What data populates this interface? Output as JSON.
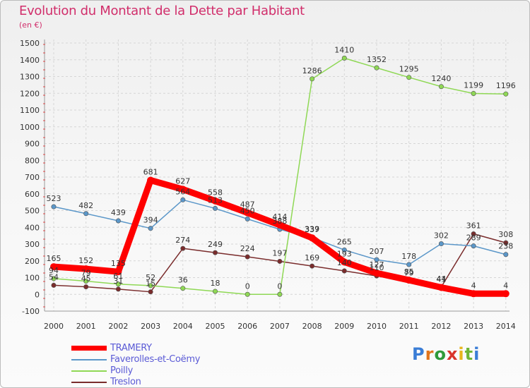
{
  "header": {
    "title": "Evolution du Montant de la Dette par Habitant",
    "subtitle": "(en €)"
  },
  "brand": {
    "name": "Proxiti",
    "letter_colors": [
      "#3a7dd6",
      "#e1741c",
      "#2f9a3a",
      "#d9342b",
      "#e8b51c",
      "#6fb536",
      "#3a7dd6"
    ]
  },
  "chart_data": {
    "type": "line",
    "title": "Evolution du Montant de la Dette par Habitant",
    "subtitle": "(en €)",
    "xlabel": "",
    "ylabel": "",
    "x": [
      "2000",
      "2001",
      "2002",
      "2003",
      "2004",
      "2005",
      "2006",
      "2007",
      "2008",
      "2009",
      "2010",
      "2011",
      "2012",
      "2013",
      "2014"
    ],
    "y_ticks": [
      "-100",
      "0",
      "100",
      "200",
      "300",
      "400",
      "500",
      "600",
      "700",
      "800",
      "900",
      "1000",
      "1100",
      "1200",
      "1300",
      "1400",
      "1500"
    ],
    "ylim": [
      -100,
      1500
    ],
    "grid": true,
    "legend_position": "bottom-left",
    "series": [
      {
        "name": "TRAMERY",
        "color": "#ff0000",
        "values": [
          165,
          152,
          135,
          681,
          627,
          558,
          487,
          414,
          337,
          193,
          127,
          85,
          41,
          4,
          4
        ],
        "labels": [
          "165",
          "152",
          "135",
          "681",
          "627",
          "558",
          "487",
          "414",
          "337",
          "193",
          "127",
          "85",
          "41",
          "4",
          "4"
        ]
      },
      {
        "name": "Faverolles-et-Coëmy",
        "color": "#5b97c9",
        "values": [
          523,
          482,
          439,
          394,
          564,
          513,
          450,
          388,
          339,
          265,
          207,
          178,
          302,
          289,
          238
        ],
        "labels": [
          "523",
          "482",
          "439",
          "394",
          "564",
          "513",
          "450",
          "388",
          "339",
          "265",
          "207",
          "178",
          "302",
          "289",
          "238"
        ]
      },
      {
        "name": "Poilly",
        "color": "#8fd855",
        "values": [
          94,
          79,
          61,
          52,
          36,
          18,
          0,
          0,
          1286,
          1410,
          1352,
          1295,
          1240,
          1199,
          1196
        ],
        "labels": [
          "94",
          "79",
          "61",
          "52",
          "36",
          "18",
          "0",
          "0",
          "1286",
          "1410",
          "1352",
          "1295",
          "1240",
          "1199",
          "1196"
        ]
      },
      {
        "name": "Treslon",
        "color": "#7a2c2c",
        "values": [
          54,
          45,
          31,
          15,
          274,
          249,
          224,
          197,
          169,
          140,
          110,
          79,
          44,
          361,
          308
        ],
        "labels": [
          "54",
          "45",
          "31",
          "15",
          "274",
          "249",
          "224",
          "197",
          "169",
          "140",
          "110",
          "79",
          "44",
          "361",
          "308"
        ]
      }
    ]
  }
}
